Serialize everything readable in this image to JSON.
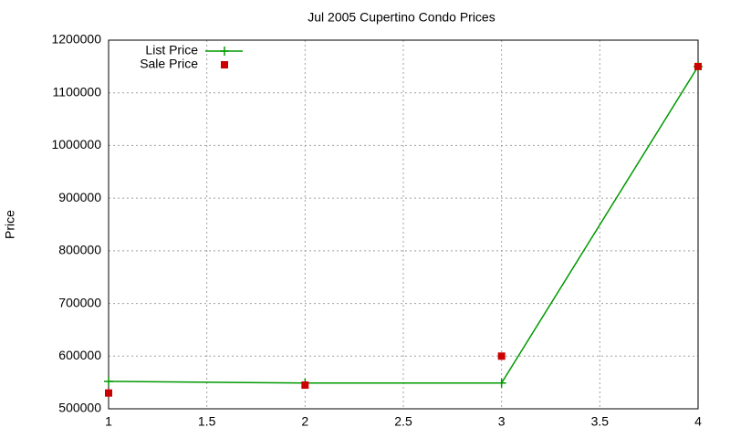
{
  "chart_data": {
    "type": "line",
    "title": "Jul 2005 Cupertino Condo Prices",
    "y_label": "Price",
    "x": [
      1,
      2,
      3,
      4
    ],
    "series": [
      {
        "name": "List Price",
        "color": "#009900",
        "marker": "plus",
        "line": true,
        "values": [
          552000,
          549000,
          549000,
          1150000
        ]
      },
      {
        "name": "Sale Price",
        "color": "#cc0000",
        "marker": "square",
        "line": false,
        "values": [
          530000,
          545000,
          600000,
          1150000
        ]
      }
    ],
    "xlim": [
      1,
      4
    ],
    "xticks": [
      1,
      1.5,
      2,
      2.5,
      3,
      3.5,
      4
    ],
    "ylim": [
      500000,
      1200000
    ],
    "yticks": [
      500000,
      600000,
      700000,
      800000,
      900000,
      1000000,
      1100000,
      1200000
    ],
    "grid": true,
    "legend": "top-left"
  }
}
